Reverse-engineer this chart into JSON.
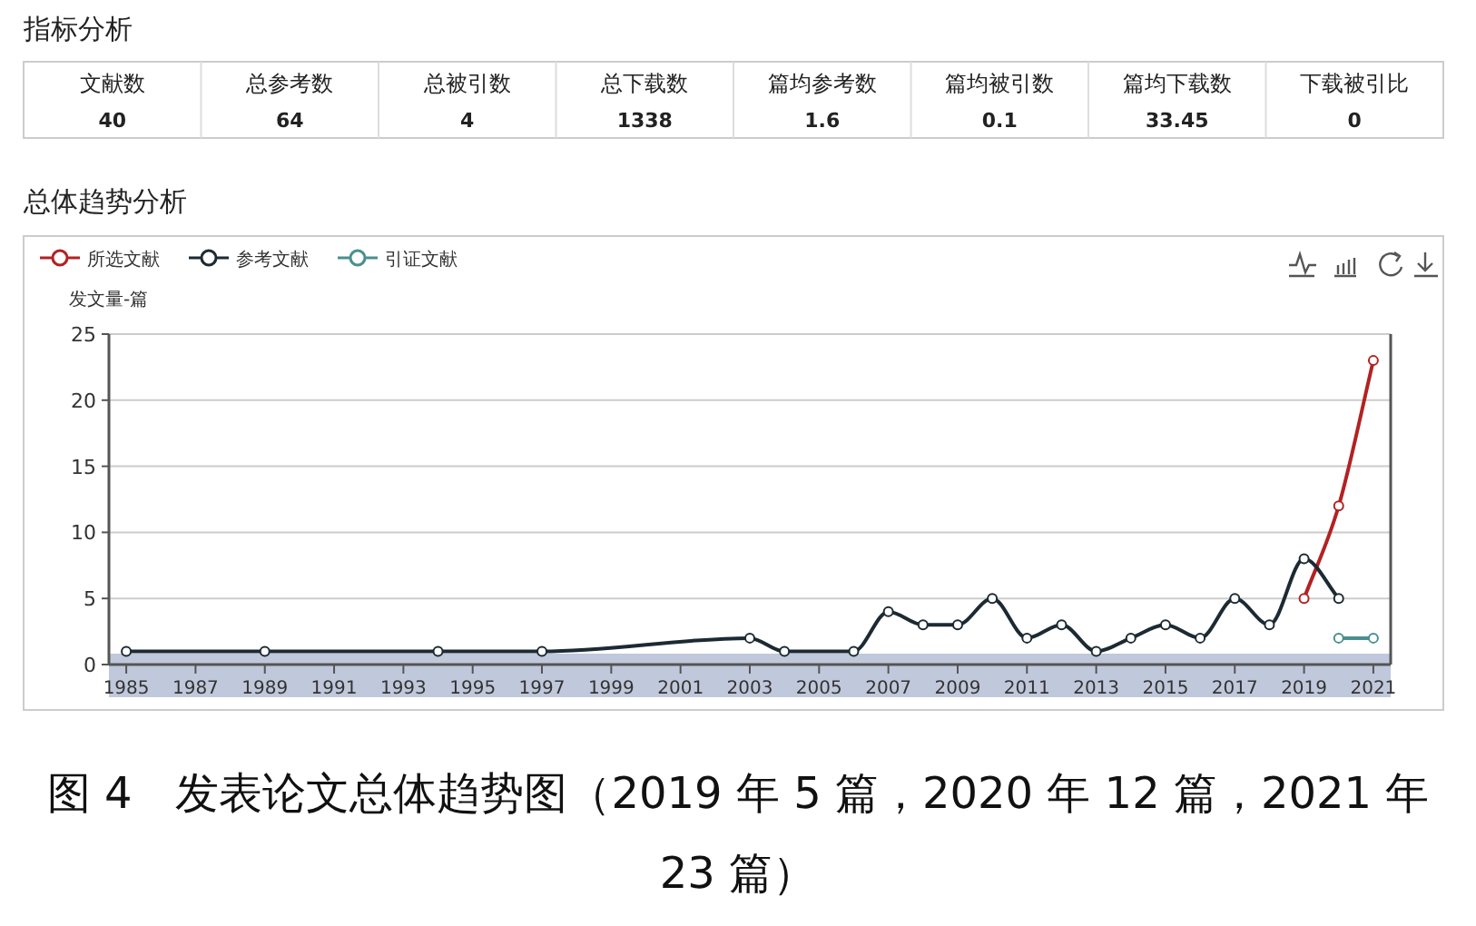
{
  "chart_data": [
    {
      "type": "other",
      "title": "指标分析",
      "categories": [
        "文献数",
        "总参考数",
        "总被引数",
        "总下载数",
        "篇均参考数",
        "篇均被引数",
        "篇均下载数",
        "下载被引比"
      ],
      "values": [
        40,
        64,
        4,
        1338,
        1.6,
        0.1,
        33.45,
        0
      ],
      "data_labels": true
    },
    {
      "type": "line",
      "title": "总体趋势分析",
      "ylabel": "发文量-篇",
      "legend": "top left",
      "marker": "circle",
      "grid": "y",
      "line_style": "solid",
      "xlim": [
        1984.5,
        2021.5
      ],
      "xticks": [
        1985,
        1987,
        1989,
        1991,
        1993,
        1995,
        1997,
        1999,
        2001,
        2003,
        2005,
        2007,
        2009,
        2011,
        2013,
        2015,
        2017,
        2019,
        2021
      ],
      "ylim": [
        0,
        25
      ],
      "yticks": [
        0,
        5,
        10,
        15,
        20,
        25
      ],
      "series": [
        {
          "name": "所选文献",
          "color": "#b22222",
          "x": [
            2019,
            2020,
            2021
          ],
          "values": [
            5,
            12,
            23
          ]
        },
        {
          "name": "参考文献",
          "color": "#1c2a33",
          "x": [
            1985,
            1989,
            1994,
            1997,
            2003,
            2004,
            2006,
            2007,
            2008,
            2009,
            2010,
            2011,
            2012,
            2013,
            2014,
            2015,
            2016,
            2017,
            2018,
            2019,
            2020
          ],
          "values": [
            1,
            1,
            1,
            1,
            2,
            1,
            1,
            4,
            3,
            3,
            5,
            2,
            3,
            1,
            2,
            3,
            2,
            5,
            3,
            8,
            5
          ]
        },
        {
          "name": "引证文献",
          "color": "#4a8f8f",
          "x": [
            2020,
            2021
          ],
          "values": [
            2,
            2
          ]
        }
      ],
      "annotations": [
        "图 4　发表论文总体趋势图（2019 年 5 篇，2020 年 12 篇，2021 年 23 篇）"
      ]
    }
  ]
}
